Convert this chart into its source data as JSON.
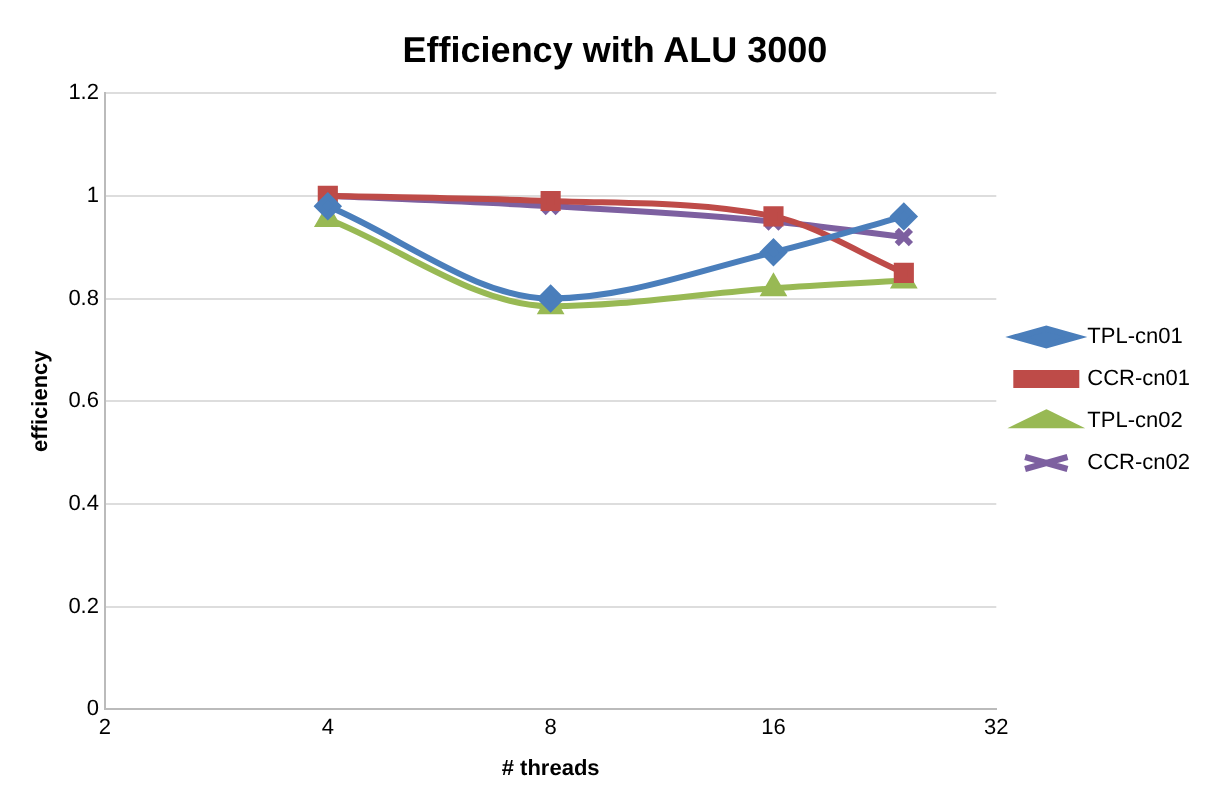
{
  "chart_data": {
    "type": "line",
    "title": "Efficiency with ALU 3000",
    "xlabel": "# threads",
    "ylabel": "efficiency",
    "x": [
      4,
      8,
      16,
      24
    ],
    "log": "x",
    "xlim": [
      2,
      32
    ],
    "xticks": [
      2,
      4,
      8,
      16,
      32
    ],
    "ylim": [
      0,
      1.2
    ],
    "yticks": [
      0,
      0.2,
      0.4,
      0.6,
      0.8,
      1,
      1.2
    ],
    "grid": "y",
    "legend": "right",
    "series": [
      {
        "name": "TPL-cn01",
        "color": "#4a7ebb",
        "marker": "diamond",
        "values": [
          0.98,
          0.8,
          0.89,
          0.96
        ]
      },
      {
        "name": "CCR-cn01",
        "color": "#be4b48",
        "marker": "square",
        "values": [
          1.0,
          0.99,
          0.96,
          0.85
        ]
      },
      {
        "name": "TPL-cn02",
        "color": "#98b954",
        "marker": "triangle",
        "values": [
          0.955,
          0.785,
          0.82,
          0.835
        ]
      },
      {
        "name": "CCR-cn02",
        "color": "#7d60a0",
        "marker": "cross",
        "values": [
          1.0,
          0.98,
          0.95,
          0.92
        ]
      }
    ]
  }
}
